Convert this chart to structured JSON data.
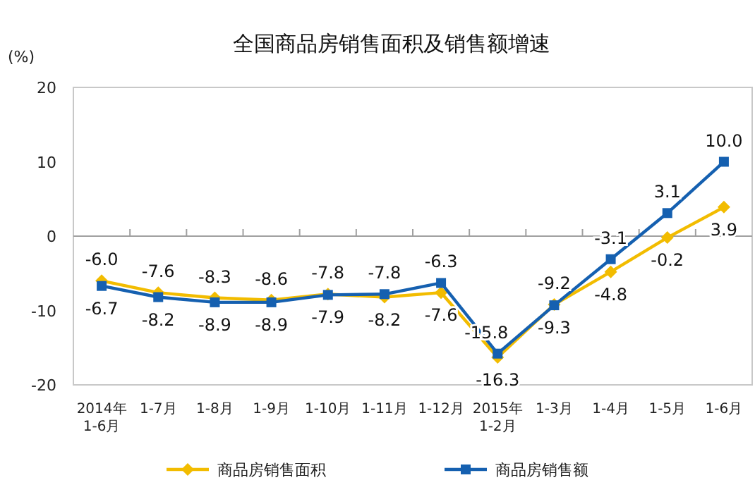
{
  "chart_data": {
    "type": "line",
    "title": "全国商品房销售面积及销售额增速",
    "ylabel": "(%)",
    "categories": [
      "2014年\n1-6月",
      "1-7月",
      "1-8月",
      "1-9月",
      "1-10月",
      "1-11月",
      "1-12月",
      "2015年\n1-2月",
      "1-3月",
      "1-4月",
      "1-5月",
      "1-6月"
    ],
    "series": [
      {
        "name": "商品房销售面积",
        "color": "#f2bc00",
        "marker": "diamond",
        "values": [
          -6.0,
          -7.6,
          -8.3,
          -8.6,
          -7.8,
          -8.2,
          -7.6,
          -16.3,
          -9.2,
          -4.8,
          -0.2,
          3.9
        ],
        "value_labels": [
          "-6.0",
          "-7.6",
          "-8.3",
          "-8.6",
          "-7.8",
          "-8.2",
          "-7.6",
          "-16.3",
          "-9.2",
          "-4.8",
          "-0.2",
          "3.9"
        ]
      },
      {
        "name": "商品房销售额",
        "color": "#1560b0",
        "marker": "square",
        "values": [
          -6.7,
          -8.2,
          -8.9,
          -8.9,
          -7.9,
          -7.8,
          -6.3,
          -15.8,
          -9.3,
          -3.1,
          3.1,
          10.0
        ],
        "value_labels": [
          "-6.7",
          "-8.2",
          "-8.9",
          "-8.9",
          "-7.9",
          "-7.8",
          "-6.3",
          "-15.8",
          "-9.3",
          "-3.1",
          "3.1",
          "10.0"
        ]
      }
    ],
    "ylim": [
      -20,
      20
    ],
    "yticks": [
      -20,
      -10,
      0,
      10,
      20
    ],
    "legend": "bottom",
    "line_style": "solid"
  }
}
